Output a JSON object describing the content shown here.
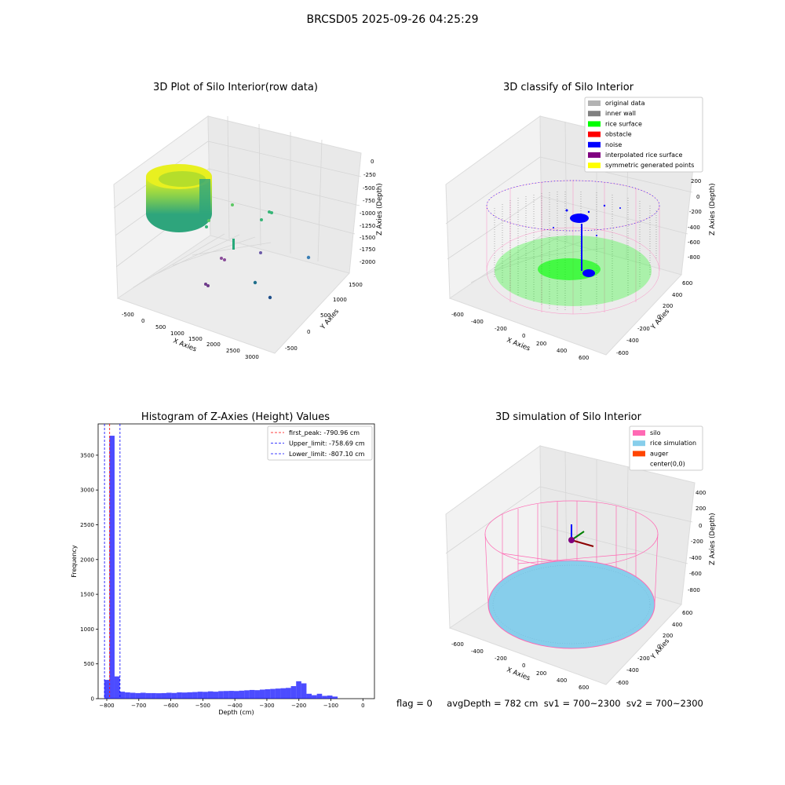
{
  "suptitle": "BRCSD05 2025-09-26 04:25:29",
  "panels": {
    "raw": {
      "title": "3D Plot of Silo Interior(row data)",
      "xlabel": "X Axies",
      "ylabel": "Y Axies",
      "zlabel": "Z Axies (Depth)",
      "xticks": [
        "-500",
        "0",
        "500",
        "1000",
        "1500",
        "2000",
        "2500",
        "3000"
      ],
      "yticks": [
        "-500",
        "0",
        "500",
        "1000",
        "1500"
      ],
      "zticks": [
        "0",
        "-250",
        "-500",
        "-750",
        "-1000",
        "-1250",
        "-1500",
        "-1750",
        "-2000"
      ]
    },
    "classify": {
      "title": "3D classify of Silo Interior",
      "xlabel": "X Axies",
      "ylabel": "Y Axies",
      "zlabel": "Z Axies (Depth)",
      "xticks": [
        "-600",
        "-400",
        "-200",
        "0",
        "200",
        "400",
        "600"
      ],
      "yticks": [
        "-600",
        "-400",
        "-200",
        "0",
        "200",
        "400",
        "600"
      ],
      "zticks": [
        "200",
        "0",
        "-200",
        "-400",
        "-600",
        "-800"
      ],
      "zticks_top": "0",
      "legend": [
        {
          "label": "original data",
          "color": "#b3b3b3"
        },
        {
          "label": "inner wall",
          "color": "#808080"
        },
        {
          "label": "rice surface",
          "color": "#00ff00"
        },
        {
          "label": "obstacle",
          "color": "#ff0000"
        },
        {
          "label": "noise",
          "color": "#0000ff"
        },
        {
          "label": "interpolated rice surface",
          "color": "#800080"
        },
        {
          "label": "symmetric generated points",
          "color": "#ffff00"
        }
      ]
    },
    "simulation": {
      "title": "3D simulation of Silo Interior",
      "xlabel": "X Axies",
      "ylabel": "Y Axies",
      "zlabel": "Z Axies (Depth)",
      "xticks": [
        "-600",
        "-400",
        "-200",
        "0",
        "200",
        "400",
        "600"
      ],
      "yticks": [
        "-600",
        "-400",
        "-200",
        "0",
        "200",
        "400",
        "600"
      ],
      "zticks": [
        "400",
        "200",
        "0",
        "-200",
        "-400",
        "-600",
        "-800"
      ],
      "legend": [
        {
          "label": "silo",
          "color": "#ff69b4"
        },
        {
          "label": "rice simulation",
          "color": "#87ceeb"
        },
        {
          "label": "auger",
          "color": "#ff4500"
        },
        {
          "label": "center(0,0)",
          "color": "#ffffff"
        }
      ]
    }
  },
  "footer": {
    "flag": "flag = 0",
    "avg": "avgDepth = 782 cm  sv1 = 700~2300  sv2 = 700~2300"
  },
  "chart_data": [
    {
      "type": "bar",
      "title": "Histogram of Z-Axies (Height) Values",
      "xlabel": "Depth (cm)",
      "ylabel": "Frequency",
      "xlim": [
        -827,
        36
      ],
      "ylim": [
        0,
        3950
      ],
      "xticks": [
        -800,
        -700,
        -600,
        -500,
        -400,
        -300,
        -200,
        -100,
        0
      ],
      "yticks": [
        0,
        500,
        1000,
        1500,
        2000,
        2500,
        3000,
        3500
      ],
      "bin_edges_start": -808,
      "bin_width": 16.2,
      "values": [
        270,
        3780,
        320,
        100,
        90,
        85,
        80,
        85,
        80,
        80,
        78,
        80,
        85,
        82,
        90,
        88,
        92,
        95,
        100,
        98,
        105,
        100,
        108,
        110,
        112,
        110,
        115,
        120,
        125,
        122,
        130,
        135,
        140,
        145,
        150,
        155,
        180,
        250,
        220,
        70,
        50,
        70,
        40,
        45,
        30
      ],
      "color": "#0000ff",
      "lines": [
        {
          "label": "first_peak: -790.96 cm",
          "x": -790.96,
          "color": "#ff0000"
        },
        {
          "label": "Upper_limit: -758.69 cm",
          "x": -758.69,
          "color": "#0000ff"
        },
        {
          "label": "Lower_limit: -807.10 cm",
          "x": -807.1,
          "color": "#0000ff"
        }
      ]
    }
  ]
}
